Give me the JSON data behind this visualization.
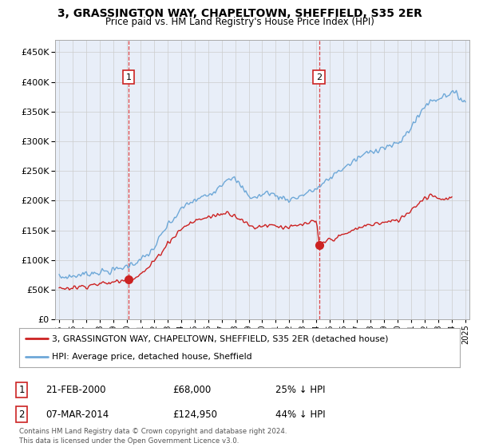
{
  "title": "3, GRASSINGTON WAY, CHAPELTOWN, SHEFFIELD, S35 2ER",
  "subtitle": "Price paid vs. HM Land Registry's House Price Index (HPI)",
  "background_color": "#ffffff",
  "plot_bg_color": "#e8eef8",
  "red_line_label": "3, GRASSINGTON WAY, CHAPELTOWN, SHEFFIELD, S35 2ER (detached house)",
  "blue_line_label": "HPI: Average price, detached house, Sheffield",
  "sale1_label": "1",
  "sale1_date": "21-FEB-2000",
  "sale1_price": "£68,000",
  "sale1_hpi": "25% ↓ HPI",
  "sale1_year": 2000.13,
  "sale1_value": 68000,
  "sale2_label": "2",
  "sale2_date": "07-MAR-2014",
  "sale2_price": "£124,950",
  "sale2_hpi": "44% ↓ HPI",
  "sale2_year": 2014.19,
  "sale2_value": 124950,
  "footer": "Contains HM Land Registry data © Crown copyright and database right 2024.\nThis data is licensed under the Open Government Licence v3.0.",
  "ylim": [
    0,
    470000
  ],
  "yticks": [
    0,
    50000,
    100000,
    150000,
    200000,
    250000,
    300000,
    350000,
    400000,
    450000
  ],
  "hpi_color": "#6ea8d8",
  "red_color": "#cc2222",
  "marker_color": "#cc2222",
  "vline_color": "#dd3333"
}
